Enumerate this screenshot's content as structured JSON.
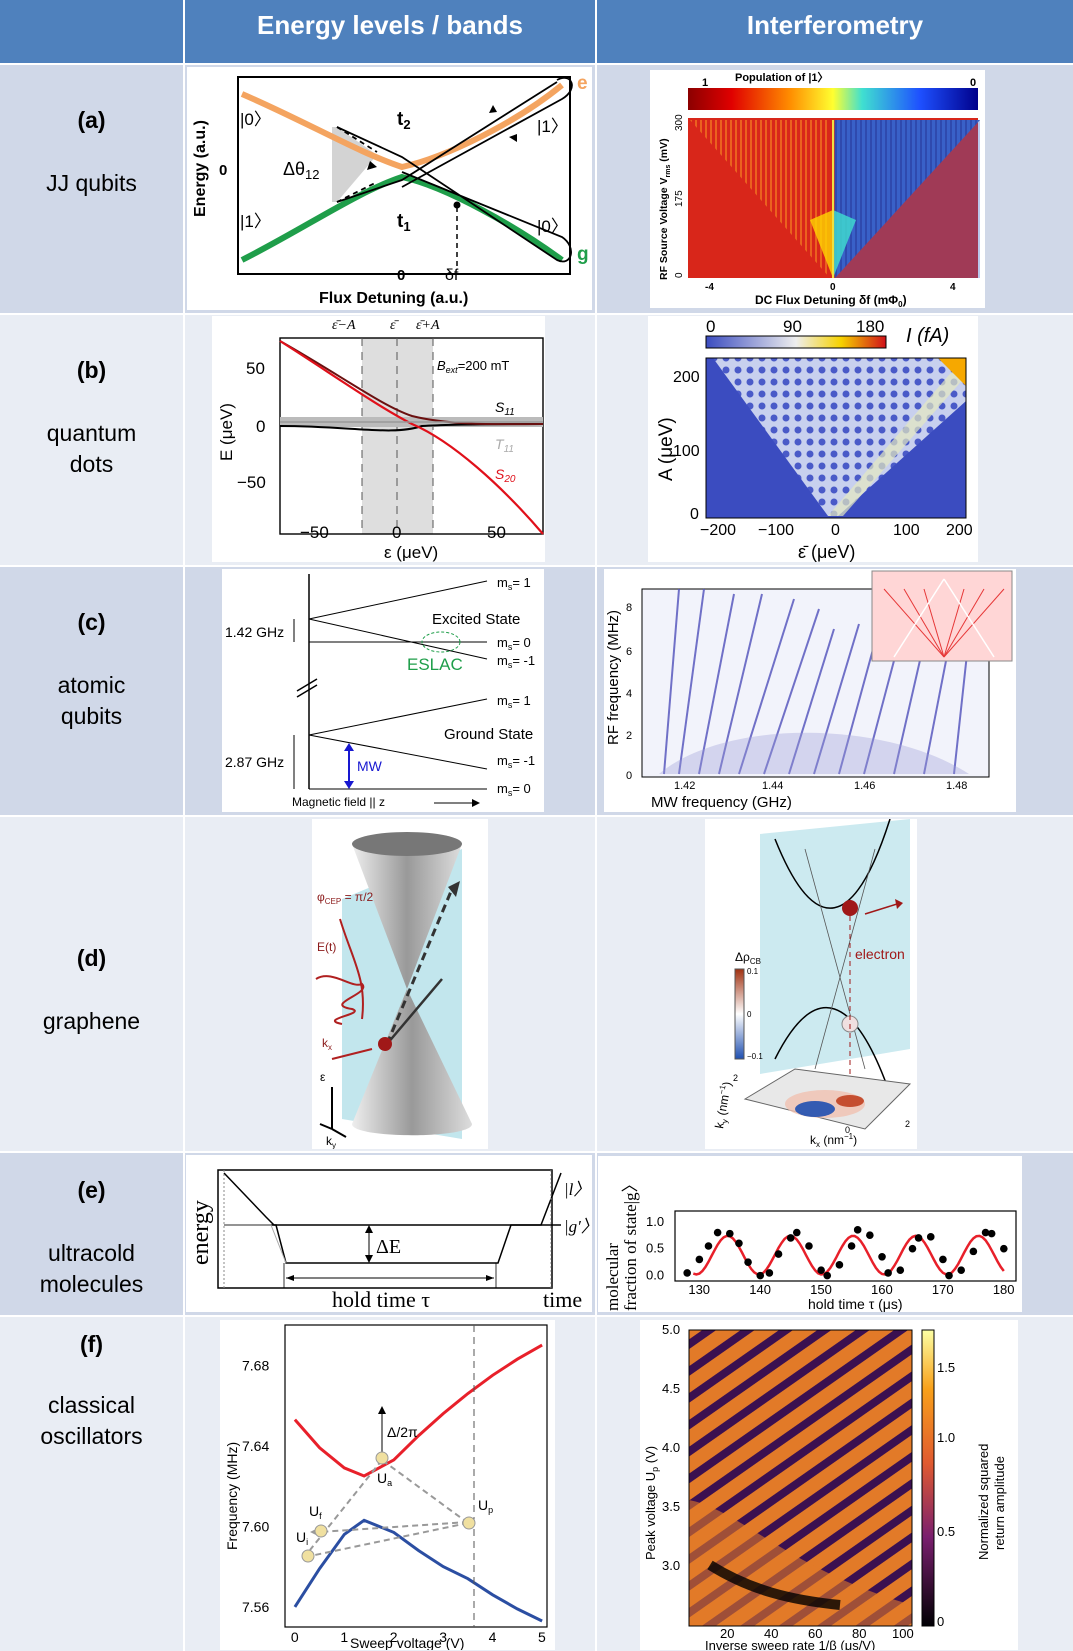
{
  "header": {
    "col1": "Energy levels / bands",
    "col2": "Interferometry"
  },
  "rows": [
    {
      "letter": "(a)",
      "name": "JJ qubits"
    },
    {
      "letter": "(b)",
      "name": "quantum dots"
    },
    {
      "letter": "(c)",
      "name": "atomic qubits"
    },
    {
      "letter": "(d)",
      "name": "graphene"
    },
    {
      "letter": "(e)",
      "name": "ultracold molecules"
    },
    {
      "letter": "(f)",
      "name": "classical oscillators"
    }
  ],
  "name_lines": {
    "a": [
      "JJ qubits"
    ],
    "b": [
      "quantum",
      "dots"
    ],
    "c": [
      "atomic",
      "qubits"
    ],
    "d": [
      "graphene"
    ],
    "e": [
      "ultracold",
      "molecules"
    ],
    "f": [
      "classical",
      "oscillators"
    ]
  },
  "a_left": {
    "ylabel": "Energy (a.u.)",
    "xlabel": "Flux Detuning (a.u.)",
    "y0": "0",
    "x0": "0",
    "ket0_left": "|0〉",
    "ket1_left": "|1〉",
    "ket1_right": "|1〉",
    "ket0_right": "|0〉",
    "t2": "t",
    "t2_sub": "2",
    "t1": "t",
    "t1_sub": "1",
    "dtheta": "Δθ",
    "dtheta_sub": "12",
    "delta_f": "δf",
    "e_label": "e",
    "g_label": "g",
    "colors": {
      "e": "#f4a460",
      "g": "#1f9e4a"
    }
  },
  "a_right": {
    "colorbar_title": "Population of |1〉",
    "cb_left": "1",
    "cb_right": "0",
    "ylabel": "RF Source Voltage V",
    "ylabel_sub": "rms",
    "ylabel_unit": " (mV)",
    "yticks": [
      "300",
      "175",
      "0"
    ],
    "xlabel": "DC Flux Detuning δf (mΦ",
    "xlabel_sub": "0",
    "xlabel_end": ")",
    "xticks": [
      "-4",
      "0",
      "4"
    ]
  },
  "b_left": {
    "top_labels": [
      "ε̄−A",
      "ε̄",
      "ε̄+A"
    ],
    "bext": "B",
    "bext_sub": "ext",
    "bext_val": "=200 mT",
    "s11": "S",
    "s11_sub": "11",
    "t11": "T",
    "t11_sub": "11",
    "s20": "S",
    "s20_sub": "20",
    "ylabel": "E (μeV)",
    "xlabel": "ε (μeV)",
    "yticks": [
      "50",
      "0",
      "−50"
    ],
    "xticks": [
      "−50",
      "0",
      "50"
    ]
  },
  "b_right": {
    "cb_ticks": [
      "0",
      "90",
      "180"
    ],
    "cb_unit": "I (fA)",
    "ylabel": "A (μeV)",
    "xlabel": "ε̄ (μeV)",
    "yticks": [
      "200",
      "100",
      "0"
    ],
    "xticks": [
      "−200",
      "−100",
      "0",
      "100",
      "200"
    ]
  },
  "c_left": {
    "ms_labels": [
      "m",
      "m",
      "m",
      "m",
      "m",
      "m"
    ],
    "ms_vals": [
      "= 1",
      "= 0",
      "= -1",
      "= 1",
      "= -1",
      "= 0"
    ],
    "excited": "Excited State",
    "ground": "Ground State",
    "eslac": "ESLAC",
    "ghz1": "1.42 GHz",
    "ghz2": "2.87 GHz",
    "mw": "MW",
    "xlabel": "Magnetic field || z"
  },
  "c_right": {
    "ylabel": "RF frequency (MHz)",
    "xlabel": "MW frequency (GHz)",
    "yticks": [
      "8",
      "6",
      "4",
      "2",
      "0"
    ],
    "xticks": [
      "1.42",
      "1.44",
      "1.46",
      "1.48"
    ]
  },
  "d_left": {
    "phi": "φ",
    "phi_sub": "CEP",
    "phi_val": " = π/2",
    "et": "E(t)",
    "kx": "k",
    "kx_sub": "x",
    "eps": "ε",
    "ky": "k",
    "ky_sub": "y"
  },
  "d_right": {
    "drho": "Δρ",
    "drho_sub": "CB",
    "cb_ticks": [
      "0.1",
      "0",
      "−0.1"
    ],
    "electron": "electron",
    "kx_label": "k",
    "kx_sub": "x",
    "kx_unit": " (nm",
    "ky_label": "k",
    "ky_sub": "y",
    "ky_unit": " (nm",
    "inv": "−1",
    "close": ")",
    "axis_ticks": [
      "0",
      "2",
      "2"
    ]
  },
  "e_left": {
    "ylabel": "energy",
    "xlabel": "time",
    "hold": "hold time  τ",
    "dE": "ΔE",
    "l_state": "|l〉",
    "g_state": "|g′〉"
  },
  "e_right": {
    "ylabel1": "molecular",
    "ylabel2": "fraction of state|g〉",
    "xlabel": "hold time τ (μs)",
    "yticks": [
      "1.0",
      "0.5",
      "0.0"
    ],
    "xticks": [
      "130",
      "140",
      "150",
      "160",
      "170",
      "180"
    ]
  },
  "f_left": {
    "ylabel": "Frequency (MHz)",
    "xlabel": "Sweep voltage (V)",
    "yticks": [
      "7.68",
      "7.64",
      "7.60",
      "7.56"
    ],
    "xticks": [
      "0",
      "1",
      "2",
      "3",
      "4",
      "5"
    ],
    "delta": "Δ/2π",
    "ua": "U",
    "ua_sub": "a",
    "ui": "U",
    "ui_sub": "i",
    "uf": "U",
    "uf_sub": "f",
    "up": "U",
    "up_sub": "p"
  },
  "f_right": {
    "ylabel": "Peak voltage U",
    "ylabel_sub": "p",
    "ylabel_unit": " (V)",
    "xlabel": "Inverse sweep rate 1/β (μs/V)",
    "yticks": [
      "5.0",
      "4.5",
      "4.0",
      "3.5",
      "3.0"
    ],
    "xticks": [
      "20",
      "40",
      "60",
      "80",
      "100"
    ],
    "cb_label1": "Normalized squared",
    "cb_label2": "return amplitude",
    "cb_ticks": [
      "1.5",
      "1.0",
      "0.5",
      "0"
    ]
  },
  "chart_data": [
    {
      "type": "scatter",
      "name": "ultracold molecules interferometry",
      "xlabel": "hold time τ (μs)",
      "ylabel": "molecular fraction of state|g〉",
      "xlim": [
        126,
        182
      ],
      "ylim": [
        -0.1,
        1.2
      ],
      "x": [
        128,
        130,
        131.5,
        133,
        135,
        136.5,
        138,
        140,
        141.5,
        143,
        145,
        146,
        148,
        150,
        151,
        153,
        155,
        156,
        158,
        160,
        161,
        163,
        165,
        166,
        168,
        170,
        171,
        173,
        175,
        177,
        178,
        180
      ],
      "y": [
        0.05,
        0.3,
        0.55,
        0.8,
        0.78,
        0.6,
        0.25,
        0.0,
        0.05,
        0.4,
        0.7,
        0.8,
        0.55,
        0.1,
        0.0,
        0.2,
        0.55,
        0.85,
        0.75,
        0.35,
        0.05,
        0.1,
        0.5,
        0.7,
        0.72,
        0.3,
        0.0,
        0.1,
        0.45,
        0.8,
        0.78,
        0.5
      ]
    },
    {
      "type": "line",
      "name": "classical oscillators levels",
      "xlabel": "Sweep voltage (V)",
      "ylabel": "Frequency (MHz)",
      "xlim": [
        -0.2,
        5.1
      ],
      "ylim": [
        7.55,
        7.7
      ],
      "series": [
        {
          "name": "upper",
          "color": "#e8202a",
          "x": [
            0,
            0.5,
            1.0,
            1.4,
            2.0,
            2.5,
            3.0,
            3.5,
            4.0,
            4.5,
            5.0
          ],
          "y": [
            7.653,
            7.639,
            7.629,
            7.625,
            7.633,
            7.645,
            7.656,
            7.666,
            7.675,
            7.683,
            7.69
          ]
        },
        {
          "name": "lower",
          "color": "#2b4ea2",
          "x": [
            0,
            0.5,
            1.0,
            1.4,
            2.0,
            2.5,
            3.0,
            3.5,
            4.0,
            4.5,
            5.0
          ],
          "y": [
            7.56,
            7.579,
            7.596,
            7.603,
            7.597,
            7.588,
            7.58,
            7.574,
            7.566,
            7.559,
            7.553
          ]
        }
      ]
    }
  ]
}
